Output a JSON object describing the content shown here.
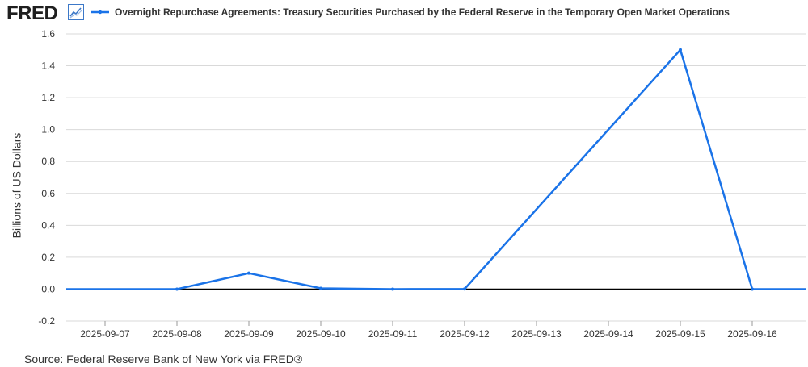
{
  "header": {
    "logo_text": "FRED",
    "logo_icon": "line-chart-icon",
    "legend_label": "Overnight Repurchase Agreements: Treasury Securities Purchased by the Federal Reserve in the Temporary Open Market Operations"
  },
  "footer": {
    "source": "Source: Federal Reserve Bank of New York via FRED®"
  },
  "colors": {
    "series": "#1a73e8",
    "grid": "#d9d9d9",
    "zero_line": "#000000"
  },
  "chart_data": {
    "type": "line",
    "title": "",
    "xlabel": "",
    "ylabel": "Billions of US Dollars",
    "x_tick_labels": [
      "2025-09-07",
      "2025-09-08",
      "2025-09-09",
      "2025-09-10",
      "2025-09-11",
      "2025-09-12",
      "2025-09-13",
      "2025-09-14",
      "2025-09-15",
      "2025-09-16"
    ],
    "y_ticks": [
      -0.2,
      0.0,
      0.2,
      0.4,
      0.6,
      0.8,
      1.0,
      1.2,
      1.4,
      1.6
    ],
    "y_tick_labels": [
      "-0.2",
      "0.0",
      "0.2",
      "0.4",
      "0.6",
      "0.8",
      "1.0",
      "1.2",
      "1.4",
      "1.6"
    ],
    "ylim": [
      -0.2,
      1.6
    ],
    "grid": true,
    "series": [
      {
        "name": "Overnight Repurchase Agreements: Treasury Securities Purchased by the Federal Reserve in the Temporary Open Market Operations",
        "points": [
          {
            "x": "2025-09-08",
            "y": 0.0
          },
          {
            "x": "2025-09-09",
            "y": 0.1
          },
          {
            "x": "2025-09-10",
            "y": 0.005
          },
          {
            "x": "2025-09-11",
            "y": 0.0
          },
          {
            "x": "2025-09-12",
            "y": 0.001
          },
          {
            "x": "2025-09-15",
            "y": 1.5
          },
          {
            "x": "2025-09-16",
            "y": 0.0
          }
        ]
      }
    ]
  }
}
